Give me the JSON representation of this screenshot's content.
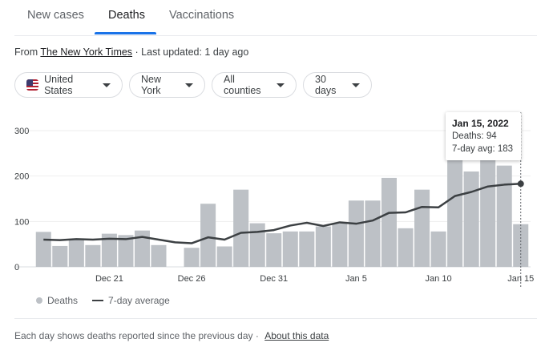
{
  "tabs": [
    {
      "label": "New cases",
      "active": false
    },
    {
      "label": "Deaths",
      "active": true
    },
    {
      "label": "Vaccinations",
      "active": false
    }
  ],
  "source": {
    "prefix": "From",
    "link_text": "The New York Times",
    "updated": "· Last updated: 1 day ago"
  },
  "filters": [
    {
      "label": "United States",
      "icon": "us-flag-icon"
    },
    {
      "label": "New York"
    },
    {
      "label": "All counties"
    },
    {
      "label": "30 days"
    }
  ],
  "chart_data": {
    "type": "bar",
    "y_ticks": [
      "300",
      "200",
      "100",
      "0"
    ],
    "ylim": [
      0,
      300
    ],
    "x_ticks": [
      "Dec 21",
      "Dec 26",
      "Dec 31",
      "Jan 5",
      "Jan 10",
      "Jan 15"
    ],
    "x_tick_indices": [
      4,
      9,
      14,
      19,
      24,
      29
    ],
    "days": 30,
    "series": [
      {
        "name": "Deaths",
        "color": "#bdc1c6",
        "values": [
          77,
          46,
          59,
          48,
          73,
          70,
          80,
          48,
          0,
          42,
          139,
          45,
          170,
          96,
          74,
          78,
          78,
          89,
          96,
          146,
          146,
          196,
          85,
          170,
          78,
          235,
          210,
          235,
          223,
          94
        ]
      },
      {
        "name": "7-day average",
        "color": "#3c4043",
        "values": [
          60,
          59,
          61,
          60,
          62,
          61,
          66,
          60,
          54,
          52,
          65,
          60,
          75,
          77,
          81,
          91,
          97,
          90,
          98,
          95,
          102,
          119,
          120,
          132,
          131,
          156,
          165,
          177,
          181,
          183
        ]
      }
    ],
    "highlight_index": 29
  },
  "tooltip": {
    "date": "Jan 15, 2022",
    "deaths": "Deaths: 94",
    "avg": "7-day avg: 183"
  },
  "legend": {
    "bars_label": "Deaths",
    "line_label": "7-day average"
  },
  "footer": {
    "note": "Each day shows deaths reported since the previous day ·",
    "link": "About this data"
  }
}
